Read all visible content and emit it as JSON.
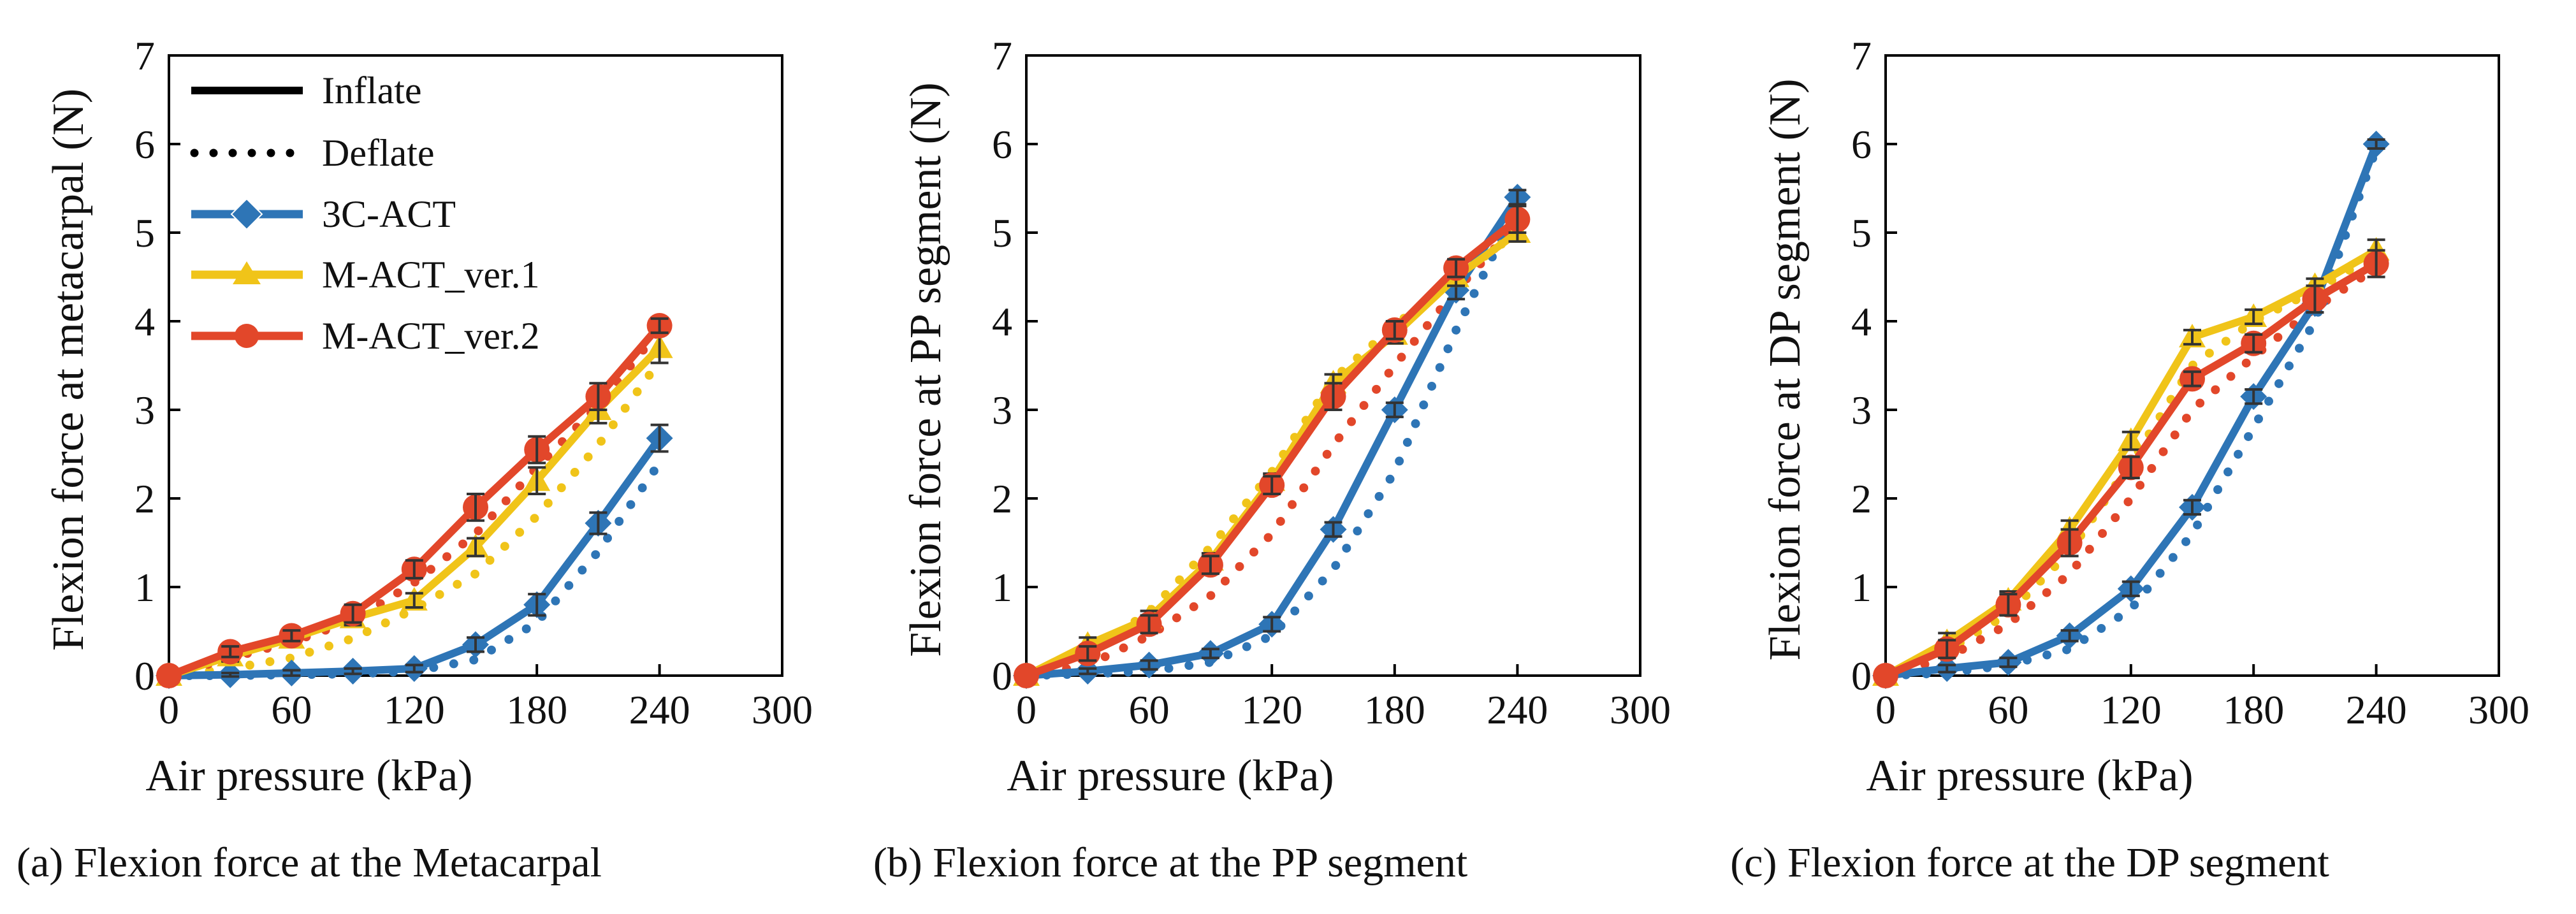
{
  "figure": {
    "legend": {
      "inflate_label": "Inflate",
      "deflate_label": "Deflate",
      "series_labels": [
        "3C-ACT",
        "M-ACT_ver.1",
        "M-ACT_ver.2"
      ]
    }
  },
  "series_style": [
    {
      "name": "3C-ACT",
      "color": "#2e75b6",
      "marker": "diamond"
    },
    {
      "name": "M-ACT_ver.1",
      "color": "#f0c419",
      "marker": "triangle"
    },
    {
      "name": "M-ACT_ver.2",
      "color": "#e2472a",
      "marker": "circle"
    }
  ],
  "chart_data": [
    {
      "type": "line",
      "caption": "(a) Flexion force at the Metacarpal",
      "xlabel": "Air pressure (kPa)",
      "ylabel": "Flexion force at metacarpal (N)",
      "xlim": [
        0,
        300
      ],
      "ylim": [
        0,
        7
      ],
      "xticks": [
        0,
        60,
        120,
        180,
        240,
        300
      ],
      "yticks": [
        0,
        1,
        2,
        3,
        4,
        5,
        6,
        7
      ],
      "x": [
        0,
        30,
        60,
        90,
        120,
        150,
        180,
        210,
        240
      ],
      "series": [
        {
          "name": "3C-ACT",
          "mode": "inflate",
          "values": [
            0,
            0.01,
            0.03,
            0.05,
            0.08,
            0.35,
            0.8,
            1.72,
            2.68
          ],
          "err": [
            0,
            0.02,
            0.03,
            0.03,
            0.04,
            0.08,
            0.12,
            0.12,
            0.15
          ]
        },
        {
          "name": "M-ACT_ver.1",
          "mode": "inflate",
          "values": [
            0,
            0.22,
            0.42,
            0.65,
            0.85,
            1.45,
            2.2,
            3.0,
            3.7
          ],
          "err": [
            0,
            0.06,
            0.06,
            0.08,
            0.08,
            0.1,
            0.15,
            0.15,
            0.17
          ]
        },
        {
          "name": "M-ACT_ver.2",
          "mode": "inflate",
          "values": [
            0,
            0.27,
            0.45,
            0.7,
            1.2,
            1.9,
            2.55,
            3.15,
            3.95
          ],
          "err": [
            0,
            0.06,
            0.06,
            0.1,
            0.1,
            0.15,
            0.15,
            0.15,
            0.08
          ]
        },
        {
          "name": "3C-ACT",
          "mode": "deflate",
          "values": [
            0,
            0,
            0.01,
            0.02,
            0.05,
            0.18,
            0.6,
            1.4,
            2.4
          ]
        },
        {
          "name": "M-ACT_ver.1",
          "mode": "deflate",
          "values": [
            0,
            0.08,
            0.2,
            0.42,
            0.75,
            1.15,
            1.8,
            2.6,
            3.55
          ]
        },
        {
          "name": "M-ACT_ver.2",
          "mode": "deflate",
          "values": [
            0,
            0.2,
            0.38,
            0.62,
            1.05,
            1.6,
            2.35,
            3.05,
            3.9
          ]
        }
      ]
    },
    {
      "type": "line",
      "caption": "(b) Flexion force at the PP segment",
      "xlabel": "Air pressure (kPa)",
      "ylabel": "Flexion force at PP segment (N)",
      "xlim": [
        0,
        300
      ],
      "ylim": [
        0,
        7
      ],
      "xticks": [
        0,
        60,
        120,
        180,
        240,
        300
      ],
      "yticks": [
        0,
        1,
        2,
        3,
        4,
        5,
        6,
        7
      ],
      "x": [
        0,
        30,
        60,
        90,
        120,
        150,
        180,
        210,
        240
      ],
      "series": [
        {
          "name": "3C-ACT",
          "mode": "inflate",
          "values": [
            0,
            0.05,
            0.12,
            0.25,
            0.58,
            1.65,
            3.0,
            4.35,
            5.4
          ],
          "err": [
            0,
            0.03,
            0.05,
            0.05,
            0.08,
            0.08,
            0.08,
            0.1,
            0.08
          ]
        },
        {
          "name": "M-ACT_ver.1",
          "mode": "inflate",
          "values": [
            0,
            0.35,
            0.65,
            1.3,
            2.2,
            3.3,
            3.85,
            4.5,
            5.0
          ],
          "err": [
            0,
            0.08,
            0.08,
            0.08,
            0.08,
            0.1,
            0.1,
            0.1,
            0.1
          ]
        },
        {
          "name": "M-ACT_ver.2",
          "mode": "inflate",
          "values": [
            0,
            0.25,
            0.58,
            1.25,
            2.15,
            3.15,
            3.9,
            4.6,
            5.15
          ],
          "err": [
            0,
            0.08,
            0.1,
            0.1,
            0.1,
            0.15,
            0.1,
            0.1,
            0.15
          ]
        },
        {
          "name": "3C-ACT",
          "mode": "deflate",
          "values": [
            0,
            0.02,
            0.05,
            0.15,
            0.45,
            1.2,
            2.3,
            3.9,
            5.3
          ]
        },
        {
          "name": "M-ACT_ver.1",
          "mode": "deflate",
          "values": [
            0,
            0.25,
            0.72,
            1.45,
            2.3,
            3.35,
            3.95,
            4.5,
            5.0
          ]
        },
        {
          "name": "M-ACT_ver.2",
          "mode": "deflate",
          "values": [
            0,
            0.12,
            0.45,
            0.9,
            1.6,
            2.6,
            3.5,
            4.35,
            5.1
          ]
        }
      ]
    },
    {
      "type": "line",
      "caption": "(c) Flexion force at the DP segment",
      "xlabel": "Air pressure (kPa)",
      "ylabel": "Flexion force at DP segment (N)",
      "xlim": [
        0,
        300
      ],
      "ylim": [
        0,
        7
      ],
      "xticks": [
        0,
        60,
        120,
        180,
        240,
        300
      ],
      "yticks": [
        0,
        1,
        2,
        3,
        4,
        5,
        6,
        7
      ],
      "x": [
        0,
        30,
        60,
        90,
        120,
        150,
        180,
        210,
        240
      ],
      "series": [
        {
          "name": "3C-ACT",
          "mode": "inflate",
          "values": [
            0,
            0.08,
            0.15,
            0.45,
            0.98,
            1.9,
            3.15,
            4.2,
            6.0
          ],
          "err": [
            0,
            0.04,
            0.05,
            0.06,
            0.08,
            0.08,
            0.08,
            0.1,
            0.05
          ]
        },
        {
          "name": "M-ACT_ver.1",
          "mode": "inflate",
          "values": [
            0,
            0.38,
            0.85,
            1.65,
            2.65,
            3.82,
            4.05,
            4.4,
            4.8
          ],
          "err": [
            0,
            0.1,
            0.1,
            0.1,
            0.1,
            0.08,
            0.08,
            0.08,
            0.12
          ]
        },
        {
          "name": "M-ACT_ver.2",
          "mode": "inflate",
          "values": [
            0,
            0.3,
            0.8,
            1.5,
            2.35,
            3.35,
            3.75,
            4.25,
            4.65
          ],
          "err": [
            0,
            0.1,
            0.12,
            0.15,
            0.12,
            0.08,
            0.1,
            0.15,
            0.15
          ]
        },
        {
          "name": "3C-ACT",
          "mode": "deflate",
          "values": [
            0,
            0.03,
            0.12,
            0.3,
            0.75,
            1.6,
            2.8,
            4.0,
            5.95
          ]
        },
        {
          "name": "M-ACT_ver.1",
          "mode": "deflate",
          "values": [
            0,
            0.28,
            0.7,
            1.4,
            2.4,
            3.5,
            4.0,
            4.35,
            4.75
          ]
        },
        {
          "name": "M-ACT_ver.2",
          "mode": "deflate",
          "values": [
            0,
            0.2,
            0.58,
            1.15,
            2.0,
            3.0,
            3.6,
            4.15,
            4.6
          ]
        }
      ]
    }
  ]
}
